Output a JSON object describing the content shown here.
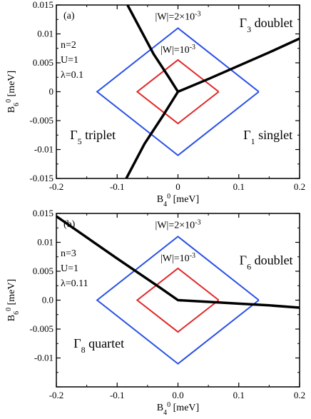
{
  "chart_data": [
    {
      "type": "line",
      "panel_label": "(a)",
      "params": [
        "n=2",
        "U=1",
        "λ=0.1"
      ],
      "xlabel": "B₄⁰ [meV]",
      "ylabel": "B₆⁰ [meV]",
      "xlim": [
        -0.2,
        0.2
      ],
      "ylim": [
        -0.015,
        0.015
      ],
      "xticks": [
        -0.2,
        -0.1,
        0,
        0.1,
        0.2
      ],
      "xtick_labels": [
        "-0.2",
        "-0.1",
        "0",
        "0.1",
        "0.2"
      ],
      "yticks": [
        -0.015,
        -0.01,
        -0.005,
        0,
        0.005,
        0.01,
        0.015
      ],
      "ytick_labels": [
        "-0.015",
        "-0.01",
        "-0.005",
        "0",
        "0.005",
        "0.01",
        "0.015"
      ],
      "phase_labels": [
        {
          "text": "Γ₃ doublet",
          "x": 0.145,
          "y": 0.0112
        },
        {
          "text": "Γ₅ triplet",
          "x": -0.14,
          "y": -0.0082
        },
        {
          "text": "Γ₁ singlet",
          "x": 0.148,
          "y": -0.0082
        }
      ],
      "annotations": [
        {
          "text": "|W|=2×10⁻³",
          "x": 0.0,
          "y": 0.0125
        },
        {
          "text": "|W|=10⁻³",
          "x": 0.0,
          "y": 0.0067
        }
      ],
      "boundaries": [
        {
          "color": "#000000",
          "points": [
            [
              -0.083,
              0.015
            ],
            [
              -0.04,
              0.0065
            ],
            [
              -0.015,
              0.0025
            ],
            [
              0.0,
              0.0
            ]
          ]
        },
        {
          "color": "#000000",
          "points": [
            [
              -0.085,
              -0.015
            ],
            [
              -0.055,
              -0.009
            ],
            [
              -0.025,
              -0.0042
            ],
            [
              0.0,
              0.0
            ]
          ]
        },
        {
          "color": "#000000",
          "points": [
            [
              0.0,
              0.0
            ],
            [
              0.05,
              0.0022
            ],
            [
              0.1,
              0.0045
            ],
            [
              0.15,
              0.0068
            ],
            [
              0.2,
              0.0092
            ]
          ]
        }
      ],
      "contours": [
        {
          "name": "|W|=2×10⁻³",
          "color": "#2850e6",
          "points": [
            [
              0.133,
              0.0
            ],
            [
              0.0,
              0.011
            ],
            [
              -0.133,
              0.0
            ],
            [
              0.0,
              -0.011
            ],
            [
              0.133,
              0.0
            ]
          ]
        },
        {
          "name": "|W|=10⁻³",
          "color": "#e02828",
          "points": [
            [
              0.067,
              0.0
            ],
            [
              0.0,
              0.0055
            ],
            [
              -0.067,
              0.0
            ],
            [
              0.0,
              -0.0055
            ],
            [
              0.067,
              0.0
            ]
          ]
        }
      ]
    },
    {
      "type": "line",
      "panel_label": "(b)",
      "params": [
        "n=3",
        "U=1",
        "λ=0.11"
      ],
      "xlabel": "B₄⁰ [meV]",
      "ylabel": "B₆⁰ [meV]",
      "xlim": [
        -0.2,
        0.2
      ],
      "ylim": [
        -0.015,
        0.015
      ],
      "xticks": [
        -0.2,
        -0.1,
        0.0,
        0.1,
        0.2
      ],
      "xtick_labels": [
        "-0.2",
        "-0.1",
        "0.0",
        "0.1",
        "0.2"
      ],
      "yticks": [
        -0.015,
        -0.01,
        -0.005,
        0,
        0.005,
        0.01,
        0.015
      ],
      "ytick_labels": [
        "",
        "-0.01",
        "-0.005",
        "0.0",
        "0.005",
        "0.01",
        "0.015"
      ],
      "phase_labels": [
        {
          "text": "Γ₆ doublet",
          "x": 0.145,
          "y": 0.0062
        },
        {
          "text": "Γ₈ quartet",
          "x": -0.13,
          "y": -0.0082
        }
      ],
      "annotations": [
        {
          "text": "|W|=2×10⁻³",
          "x": 0.0,
          "y": 0.0125
        },
        {
          "text": "|W|=10⁻³",
          "x": 0.0,
          "y": 0.0067
        }
      ],
      "boundaries": [
        {
          "color": "#000000",
          "points": [
            [
              -0.2,
              0.0145
            ],
            [
              -0.1,
              0.0072
            ],
            [
              -0.03,
              0.0022
            ],
            [
              0.0,
              0.0
            ],
            [
              0.05,
              -0.0003
            ],
            [
              0.1,
              -0.0006
            ],
            [
              0.15,
              -0.0009
            ],
            [
              0.2,
              -0.0013
            ]
          ]
        }
      ],
      "contours": [
        {
          "name": "|W|=2×10⁻³",
          "color": "#2850e6",
          "points": [
            [
              0.133,
              0.0
            ],
            [
              0.0,
              0.011
            ],
            [
              -0.133,
              0.0
            ],
            [
              0.0,
              -0.011
            ],
            [
              0.133,
              0.0
            ]
          ]
        },
        {
          "name": "|W|=10⁻³",
          "color": "#e02828",
          "points": [
            [
              0.067,
              0.0
            ],
            [
              0.0,
              0.0055
            ],
            [
              -0.067,
              0.0
            ],
            [
              0.0,
              -0.0055
            ],
            [
              0.067,
              0.0
            ]
          ]
        }
      ]
    }
  ]
}
